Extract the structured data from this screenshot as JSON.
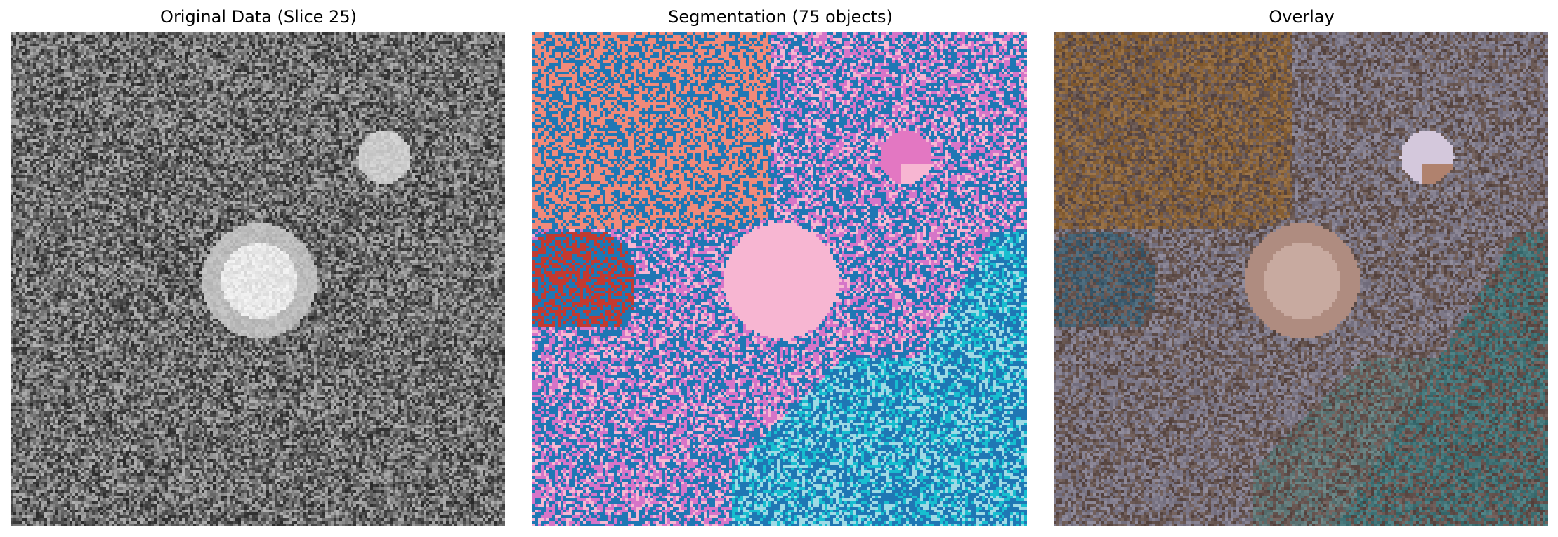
{
  "figure": {
    "panels": [
      {
        "id": "original",
        "title": "Original Data (Slice 25)"
      },
      {
        "id": "segmentation",
        "title": "Segmentation (75 objects)"
      },
      {
        "id": "overlay",
        "title": "Overlay"
      }
    ]
  },
  "colors": {
    "background_gray_mean": "#6e6e6e",
    "seg_blue": "#1f77b4",
    "seg_salmon": "#f08a7a",
    "seg_orchid": "#d675c8",
    "seg_pink_light": "#f7b6d2",
    "seg_red": "#c23a30",
    "seg_cyan": "#17becf",
    "seg_light_blue": "#9edae5",
    "seg_pink_spot": "#e377c2",
    "overlay_brown": "#7a5a52",
    "overlay_orange": "#b8772f",
    "overlay_teal": "#3c8f95",
    "overlay_lavender": "#a49cb6"
  }
}
